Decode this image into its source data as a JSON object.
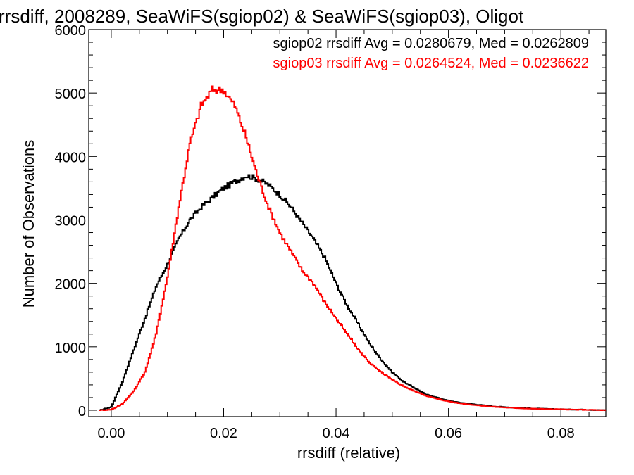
{
  "chart_data": {
    "type": "line",
    "title": "rrsdiff, 2008289, SeaWiFS(sgiop02) & SeaWiFS(sgiop03), Oligot",
    "xlabel": "rrsdiff (relative)",
    "ylabel": "Number of Observations",
    "xlim": [
      -0.004,
      0.088
    ],
    "ylim": [
      -100,
      6000
    ],
    "xticks": [
      0.0,
      0.02,
      0.04,
      0.06,
      0.08
    ],
    "xtick_labels": [
      "0.00",
      "0.02",
      "0.04",
      "0.06",
      "0.08"
    ],
    "yticks": [
      0,
      1000,
      2000,
      3000,
      4000,
      5000,
      6000
    ],
    "ytick_labels": [
      "0",
      "1000",
      "2000",
      "3000",
      "4000",
      "5000",
      "6000"
    ],
    "series": [
      {
        "name": "sgiop02 rrsdiff Avg = 0.0280679, Med = 0.0262809",
        "color": "#000000",
        "x": [
          -0.002,
          0.0,
          0.002,
          0.004,
          0.006,
          0.008,
          0.01,
          0.012,
          0.014,
          0.016,
          0.018,
          0.02,
          0.022,
          0.024,
          0.026,
          0.028,
          0.03,
          0.032,
          0.034,
          0.036,
          0.038,
          0.04,
          0.042,
          0.044,
          0.046,
          0.048,
          0.05,
          0.052,
          0.054,
          0.056,
          0.058,
          0.06,
          0.062,
          0.064,
          0.066,
          0.068,
          0.07,
          0.072,
          0.074,
          0.076,
          0.078,
          0.08,
          0.082,
          0.084,
          0.086,
          0.088
        ],
        "y": [
          0,
          50,
          450,
          950,
          1450,
          1950,
          2300,
          2700,
          3000,
          3200,
          3350,
          3500,
          3600,
          3700,
          3650,
          3550,
          3400,
          3200,
          2950,
          2700,
          2400,
          2000,
          1650,
          1350,
          1050,
          800,
          600,
          450,
          350,
          250,
          200,
          150,
          120,
          100,
          80,
          60,
          50,
          40,
          30,
          25,
          20,
          15,
          12,
          10,
          5,
          0
        ]
      },
      {
        "name": "sgiop03 rrsdiff Avg = 0.0264524, Med = 0.0236622",
        "color": "#ff0000",
        "x": [
          -0.002,
          0.0,
          0.002,
          0.004,
          0.006,
          0.008,
          0.01,
          0.012,
          0.014,
          0.016,
          0.018,
          0.02,
          0.022,
          0.024,
          0.026,
          0.028,
          0.03,
          0.032,
          0.034,
          0.036,
          0.038,
          0.04,
          0.042,
          0.044,
          0.046,
          0.048,
          0.05,
          0.052,
          0.054,
          0.056,
          0.058,
          0.06,
          0.062,
          0.064,
          0.066,
          0.068,
          0.07,
          0.072,
          0.074,
          0.076,
          0.078,
          0.08,
          0.082,
          0.084,
          0.086,
          0.088
        ],
        "y": [
          0,
          10,
          100,
          300,
          600,
          1200,
          2100,
          3200,
          4200,
          4800,
          5050,
          5050,
          4800,
          4300,
          3700,
          3200,
          2800,
          2500,
          2200,
          2000,
          1700,
          1450,
          1200,
          950,
          750,
          600,
          480,
          380,
          300,
          230,
          180,
          140,
          110,
          90,
          70,
          55,
          45,
          35,
          28,
          22,
          18,
          14,
          10,
          8,
          5,
          0
        ]
      }
    ],
    "legend": {
      "placement": "top-right",
      "entries": [
        {
          "text": "sgiop02 rrsdiff Avg = 0.0280679, Med = 0.0262809",
          "color": "#000000"
        },
        {
          "text": "sgiop03 rrsdiff Avg = 0.0264524, Med = 0.0236622",
          "color": "#ff0000"
        }
      ]
    },
    "grid": false
  }
}
